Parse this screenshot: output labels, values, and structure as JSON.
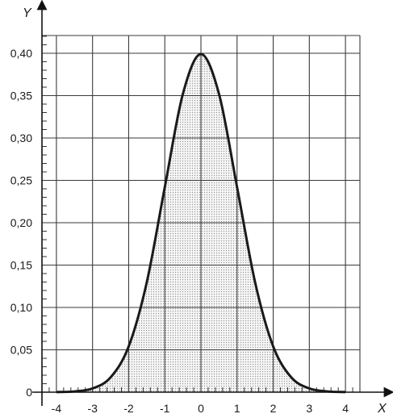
{
  "chart_data": {
    "type": "line",
    "title": "",
    "xlabel": "X",
    "ylabel": "Y",
    "xlim": [
      -4.4,
      4.4
    ],
    "ylim": [
      0,
      0.4
    ],
    "x_ticks": [
      -4,
      -3,
      -2,
      -1,
      0,
      1,
      2,
      3,
      4
    ],
    "x_tick_labels": [
      "-4",
      "-3",
      "-2",
      "-1",
      "0",
      "1",
      "2",
      "3",
      "4"
    ],
    "y_ticks": [
      0,
      0.05,
      0.1,
      0.15,
      0.2,
      0.25,
      0.3,
      0.35,
      0.4
    ],
    "y_tick_labels": [
      "0",
      "0,05",
      "0,10",
      "0,15",
      "0,20",
      "0,25",
      "0,30",
      "0,35",
      "0,40"
    ],
    "grid": true,
    "area_shaded": true,
    "series": [
      {
        "x": [
          -4,
          -3.5,
          -3,
          -2.5,
          -2,
          -1.5,
          -1,
          -0.5,
          0,
          0.5,
          1,
          1.5,
          2,
          2.5,
          3,
          3.5,
          4
        ],
        "values": [
          0.0001,
          0.0009,
          0.0044,
          0.0175,
          0.054,
          0.1295,
          0.242,
          0.352,
          0.399,
          0.352,
          0.242,
          0.1295,
          0.054,
          0.0175,
          0.0044,
          0.0009,
          0.0001
        ]
      }
    ],
    "colors": {
      "curve": "#1a1a1a",
      "grid": "#3a3a3a",
      "area": "#b5b5b5"
    }
  }
}
